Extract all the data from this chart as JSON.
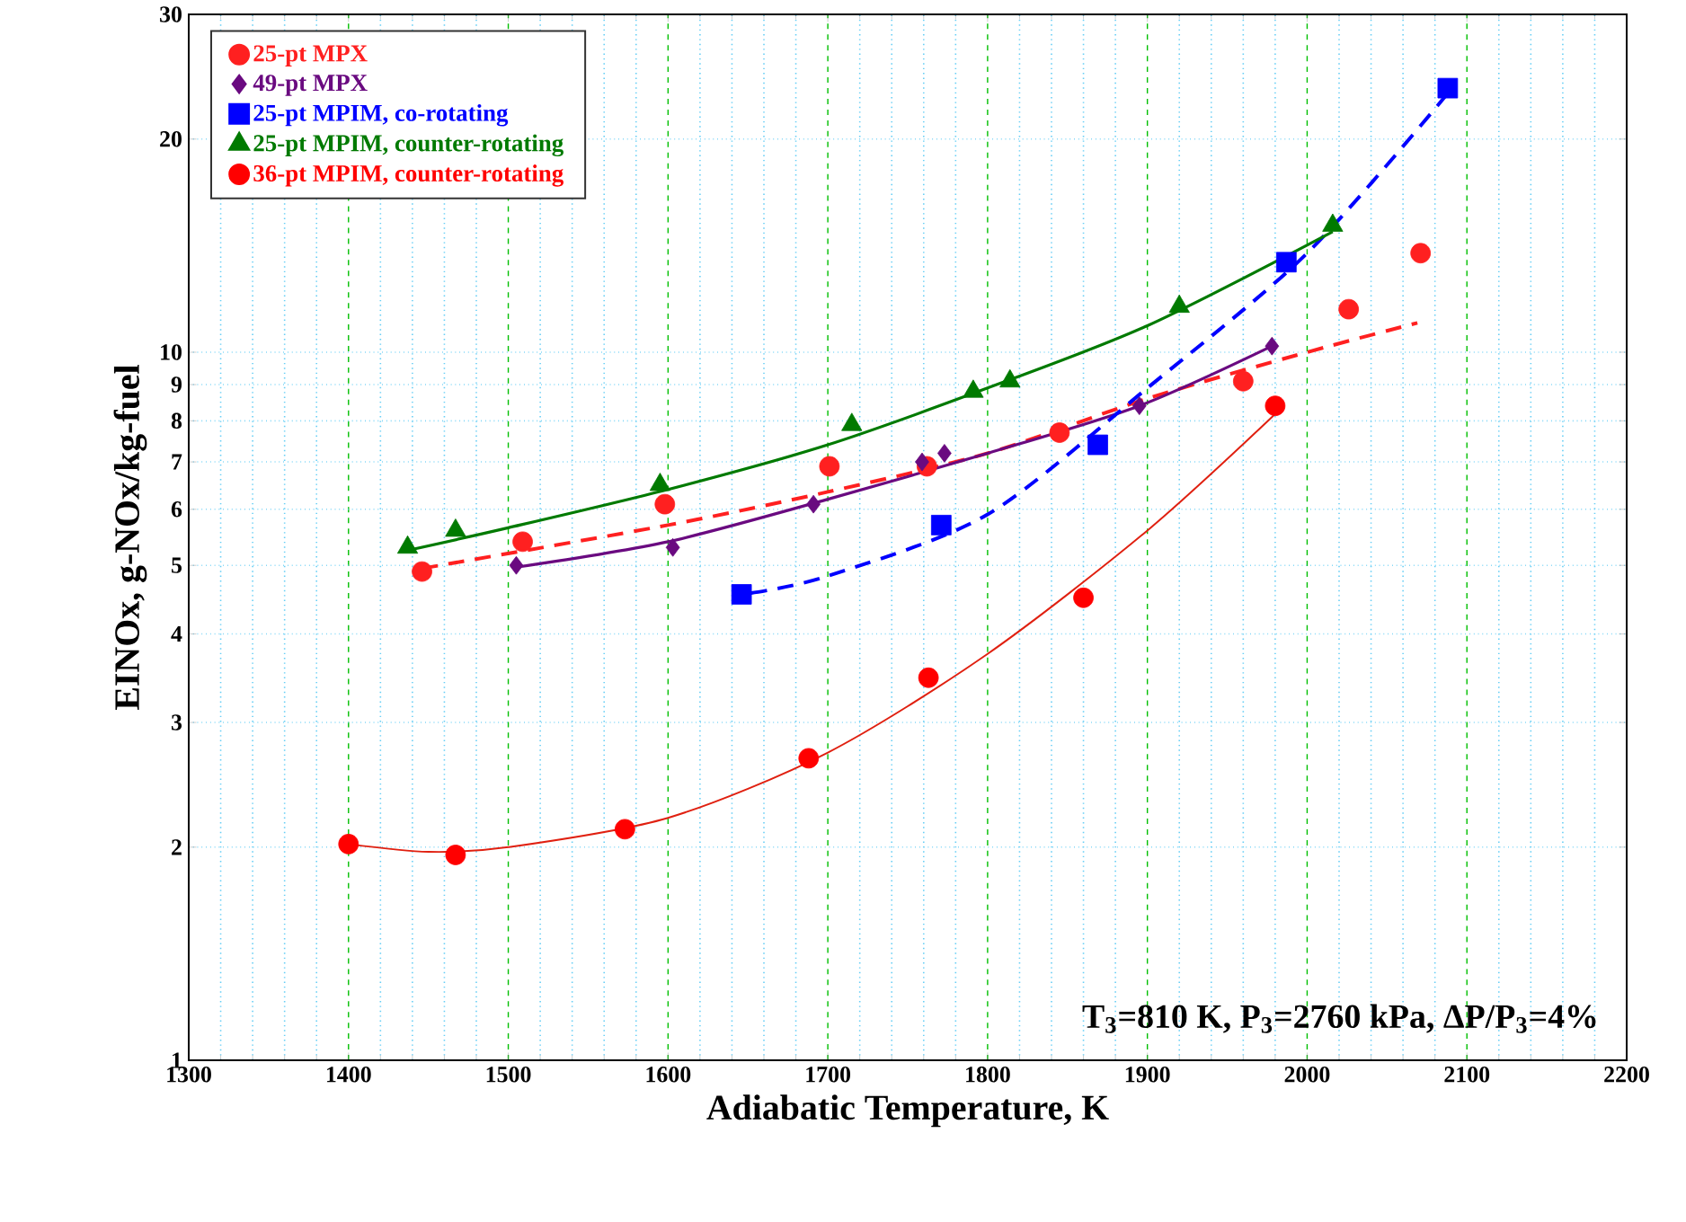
{
  "chart_data": {
    "type": "scatter",
    "xlabel": "Adiabatic Temperature, K",
    "ylabel": "EINOx, g-NOx/kg-fuel",
    "log": "y",
    "grid": true,
    "legend": "top left",
    "xlim": [
      1300,
      2200
    ],
    "xticks": [
      1300,
      1400,
      1500,
      1600,
      1700,
      1800,
      1900,
      2000,
      2100,
      2200
    ],
    "ylim": [
      1,
      30
    ],
    "yticks": [
      1,
      2,
      3,
      4,
      5,
      6,
      7,
      8,
      9,
      10,
      20,
      30
    ],
    "annotations": [
      "T$_{3}$=810 K, P$_{3}$=2760 kPa, ΔP/P$_{3}$=4%"
    ],
    "series": [
      {
        "name": "25-pt MPX",
        "color": "#ff2020",
        "marker": "circle",
        "x": [
          1446,
          1509,
          1598,
          1701,
          1762,
          1845,
          1960,
          2026,
          2071
        ],
        "values": [
          4.9,
          5.4,
          6.1,
          6.9,
          6.9,
          7.7,
          9.1,
          11.5,
          13.8
        ]
      },
      {
        "name": "49-pt MPX",
        "color": "#6a0a80",
        "marker": "diamond",
        "x": [
          1505,
          1603,
          1691,
          1759,
          1773,
          1895,
          1978
        ],
        "values": [
          5.0,
          5.3,
          6.1,
          7.0,
          7.2,
          8.4,
          10.2
        ]
      },
      {
        "name": "25-pt MPIM, co-rotating",
        "color": "#0000ff",
        "marker": "square",
        "x": [
          1646,
          1771,
          1869,
          1987,
          2088
        ],
        "values": [
          4.55,
          5.7,
          7.4,
          13.4,
          23.6
        ]
      },
      {
        "name": "25-pt MPIM, counter-rotating",
        "color": "#007a00",
        "marker": "triangle",
        "x": [
          1437,
          1467,
          1595,
          1715,
          1791,
          1814,
          1920,
          2016
        ],
        "values": [
          5.3,
          5.6,
          6.5,
          7.9,
          8.8,
          9.1,
          11.6,
          15.1
        ]
      },
      {
        "name": "36-pt MPIM, counter-rotating",
        "color": "#ff0000",
        "marker": "circle",
        "x": [
          1400,
          1467,
          1573,
          1688,
          1763,
          1860,
          1980
        ],
        "values": [
          2.02,
          1.95,
          2.12,
          2.67,
          3.47,
          4.5,
          8.4
        ]
      },
      {
        "type": "line",
        "color": "#ff2020",
        "line_style": "dashed",
        "x": [
          1446,
          1600,
          1700,
          1800,
          1900,
          2000,
          2069
        ],
        "values": [
          4.95,
          5.7,
          6.35,
          7.2,
          8.6,
          10.0,
          11.0
        ]
      },
      {
        "type": "line",
        "color": "#6a0a80",
        "line_style": "solid",
        "x": [
          1505,
          1600,
          1700,
          1800,
          1895,
          1978
        ],
        "values": [
          4.97,
          5.4,
          6.2,
          7.2,
          8.4,
          10.2
        ]
      },
      {
        "type": "line",
        "color": "#0000ff",
        "line_style": "dashed",
        "x": [
          1652,
          1700,
          1800,
          1900,
          2000,
          2088
        ],
        "values": [
          4.57,
          4.83,
          5.9,
          8.9,
          13.8,
          23.2
        ]
      },
      {
        "type": "line",
        "color": "#007a00",
        "line_style": "solid",
        "x": [
          1437,
          1500,
          1600,
          1700,
          1800,
          1900,
          2016
        ],
        "values": [
          5.25,
          5.65,
          6.4,
          7.4,
          8.9,
          10.9,
          14.8
        ]
      },
      {
        "type": "line",
        "color": "#e02010",
        "line_style": "solid",
        "x": [
          1400,
          1450,
          1500,
          1600,
          1700,
          1800,
          1900,
          1983
        ],
        "values": [
          2.02,
          1.97,
          2.0,
          2.2,
          2.72,
          3.75,
          5.6,
          8.3
        ]
      }
    ]
  }
}
